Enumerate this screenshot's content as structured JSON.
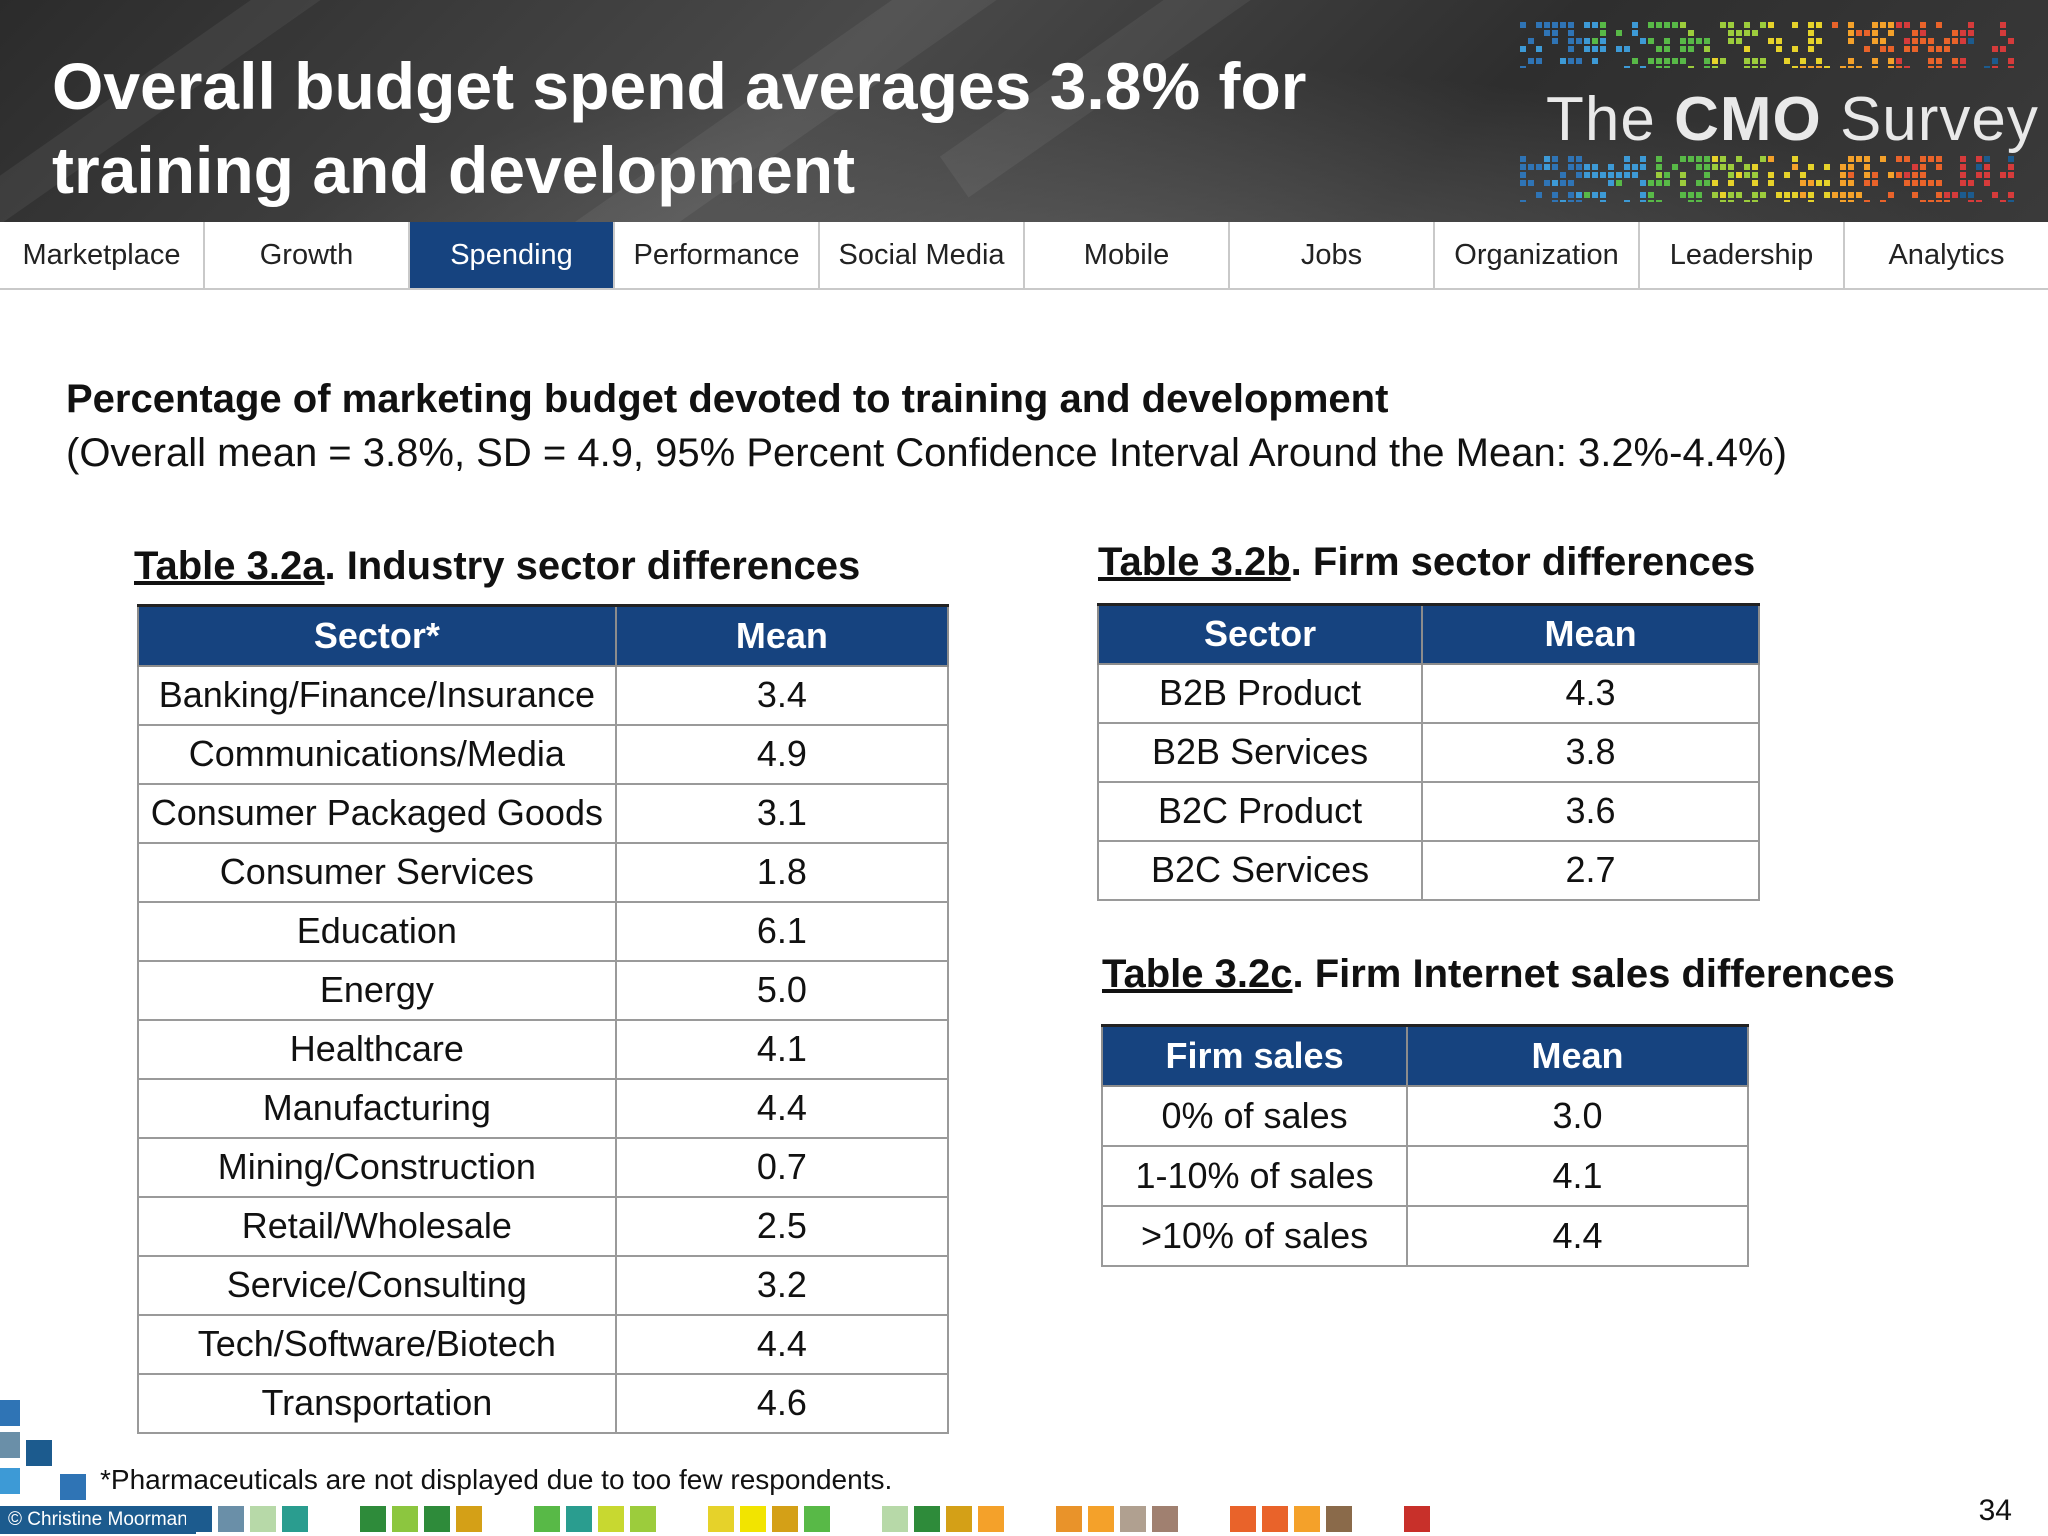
{
  "header": {
    "title_line1": "Overall budget spend averages 3.8% for",
    "title_line2": "training and development",
    "logo": {
      "prefix": "The ",
      "brand": "CMO",
      "suffix": " Survey"
    }
  },
  "nav": {
    "tabs": [
      "Marketplace",
      "Growth",
      "Spending",
      "Performance",
      "Social Media",
      "Mobile",
      "Jobs",
      "Organization",
      "Leadership",
      "Analytics"
    ],
    "active": "Spending",
    "active_color": "#16437f"
  },
  "subtitle": {
    "heading": "Percentage of marketing budget devoted to training and development",
    "detail": "(Overall mean = 3.8%, SD = 4.9, 95% Percent Confidence Interval Around the Mean: 3.2%-4.4%)"
  },
  "table_a": {
    "caption_label": "Table 3.2a",
    "caption_text": ". Industry sector differences",
    "headers": [
      "Sector*",
      "Mean"
    ],
    "rows": [
      [
        "Banking/Finance/Insurance",
        "3.4"
      ],
      [
        "Communications/Media",
        "4.9"
      ],
      [
        "Consumer Packaged Goods",
        "3.1"
      ],
      [
        "Consumer Services",
        "1.8"
      ],
      [
        "Education",
        "6.1"
      ],
      [
        "Energy",
        "5.0"
      ],
      [
        "Healthcare",
        "4.1"
      ],
      [
        "Manufacturing",
        "4.4"
      ],
      [
        "Mining/Construction",
        "0.7"
      ],
      [
        "Retail/Wholesale",
        "2.5"
      ],
      [
        "Service/Consulting",
        "3.2"
      ],
      [
        "Tech/Software/Biotech",
        "4.4"
      ],
      [
        "Transportation",
        "4.6"
      ]
    ]
  },
  "table_b": {
    "caption_label": "Table 3.2b",
    "caption_text": ". Firm sector differences",
    "headers": [
      "Sector",
      "Mean"
    ],
    "rows": [
      [
        "B2B Product",
        "4.3"
      ],
      [
        "B2B Services",
        "3.8"
      ],
      [
        "B2C Product",
        "3.6"
      ],
      [
        "B2C Services",
        "2.7"
      ]
    ]
  },
  "table_c": {
    "caption_label": "Table 3.2c",
    "caption_text": ". Firm Internet sales differences",
    "headers": [
      "Firm sales",
      "Mean"
    ],
    "rows": [
      [
        "0% of sales",
        "3.0"
      ],
      [
        "1-10% of sales",
        "4.1"
      ],
      [
        ">10% of sales",
        "4.4"
      ]
    ]
  },
  "footnote": "*Pharmaceuticals are not displayed due to too few respondents.",
  "footer": {
    "credit": "© Christine Moorman",
    "page_number": "34"
  }
}
